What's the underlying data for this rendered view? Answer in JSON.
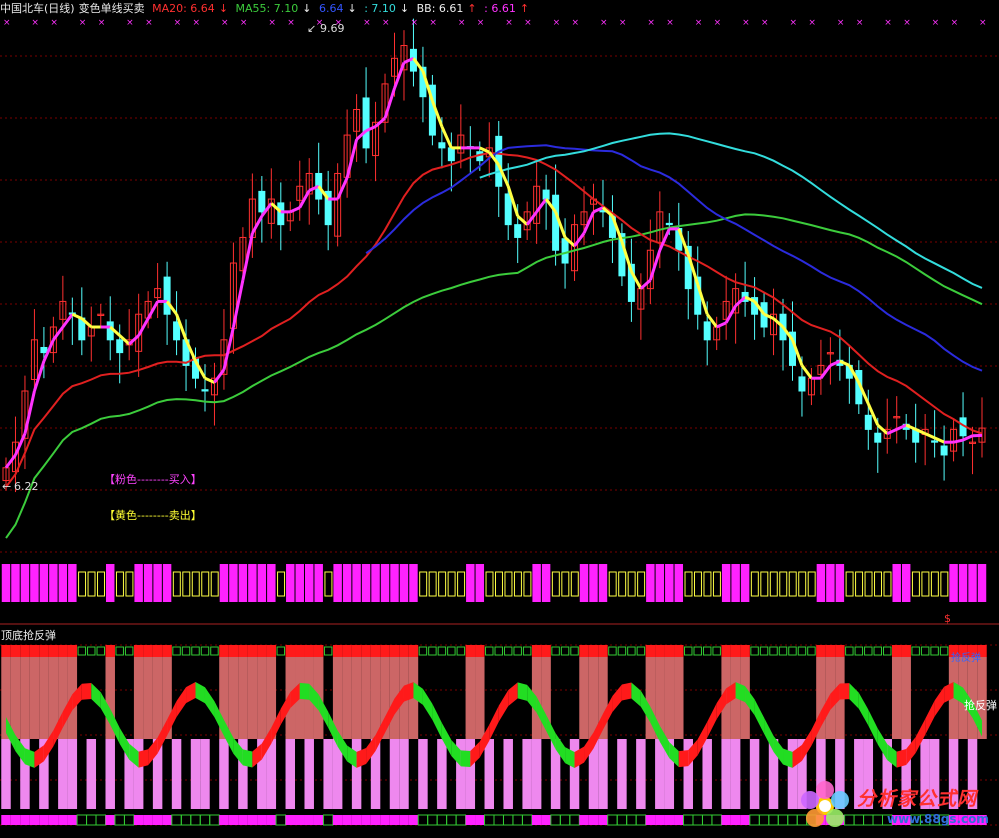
{
  "header": {
    "title": "中国北车(日线)",
    "indicator": "变色单线买卖",
    "ma20_label": "MA20: 6.64",
    "ma20_arrow": "↓",
    "ma55_label": "MA55: 7.10",
    "ma55_arrow": "↓",
    "v3_label": "6.64",
    "v3_arrow": "↓",
    "v4_label": ": 7.10",
    "v4_arrow": "↓",
    "bb_label": "BB: 6.61",
    "bb_arrow": "↑",
    "v6_label": ": 6.61",
    "v6_arrow": "↑"
  },
  "annotations": {
    "high_label": "9.69",
    "low_label": "6.22",
    "buy_legend": "【粉色--------买入】",
    "sell_legend": "【黄色--------卖出】",
    "dollar": "$"
  },
  "lower_panel": {
    "title": "顶底抢反弹",
    "right_label": "抢反弹",
    "tag": "抢反弹"
  },
  "watermark": {
    "title": "分析家公式网",
    "url": "www.88gs.com"
  },
  "colors": {
    "up": "#ff3030",
    "down": "#54ffff",
    "ma20": "#e02020",
    "ma55": "#3ccc3c",
    "blue_ma": "#2b2bdd",
    "cyan_ma": "#33dddd",
    "signal_buy": "#ff33ff",
    "signal_sell": "#ffff44",
    "magenta_bar": "#ff22ff",
    "band_red": "#cc6666",
    "band_pink": "#ee88ee"
  },
  "chart_data": {
    "type": "candlestick",
    "price_range": [
      6.22,
      9.69
    ],
    "high": 9.69,
    "low": 6.22,
    "series": [
      {
        "name": "MA20",
        "last": 6.64
      },
      {
        "name": "MA55",
        "last": 7.1
      },
      {
        "name": "BB",
        "last": 6.61
      }
    ],
    "closes": [
      6.3,
      6.5,
      6.9,
      7.3,
      7.2,
      7.4,
      7.6,
      7.5,
      7.3,
      7.4,
      7.5,
      7.3,
      7.2,
      7.3,
      7.5,
      7.6,
      7.7,
      7.5,
      7.3,
      7.1,
      7.0,
      6.9,
      7.0,
      7.3,
      7.9,
      8.1,
      8.4,
      8.3,
      8.4,
      8.2,
      8.3,
      8.5,
      8.6,
      8.4,
      8.2,
      8.6,
      8.9,
      9.1,
      8.8,
      9.0,
      9.3,
      9.5,
      9.6,
      9.4,
      9.2,
      8.9,
      8.8,
      8.7,
      8.9,
      8.8,
      8.7,
      8.8,
      8.5,
      8.2,
      8.1,
      8.3,
      8.5,
      8.4,
      8.0,
      7.9,
      8.2,
      8.3,
      8.4,
      8.3,
      8.1,
      7.8,
      7.6,
      7.7,
      8.0,
      8.3,
      8.2,
      8.0,
      7.7,
      7.5,
      7.3,
      7.4,
      7.6,
      7.7,
      7.6,
      7.5,
      7.4,
      7.5,
      7.3,
      7.1,
      6.9,
      7.0,
      7.1,
      7.2,
      7.1,
      7.0,
      6.8,
      6.6,
      6.5,
      6.6,
      6.7,
      6.6,
      6.5,
      6.6,
      6.5,
      6.4,
      6.6,
      6.55,
      6.5,
      6.61
    ]
  }
}
